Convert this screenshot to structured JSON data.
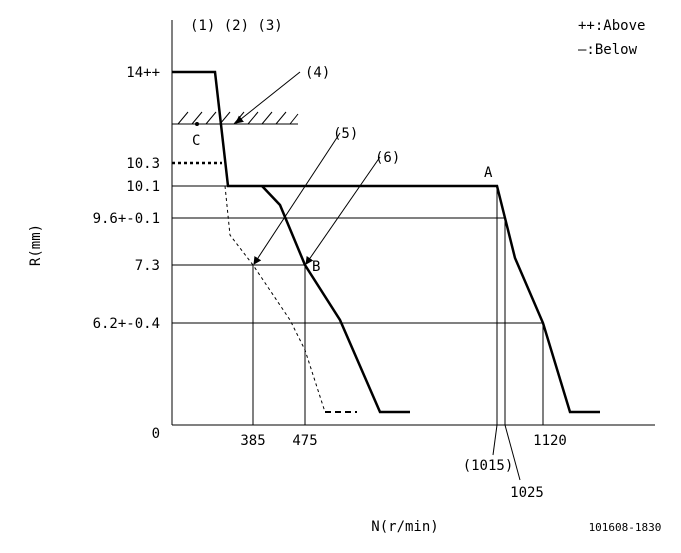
{
  "header": {
    "markers": "(1) (2) (3)",
    "legend_above": "++:Above",
    "legend_below": "—:Below"
  },
  "y_axis": {
    "title": "R(mm)",
    "ticks": [
      "14++",
      "10.3",
      "10.1",
      "9.6+-0.1",
      "7.3",
      "6.2+-0.4",
      "0"
    ]
  },
  "x_axis": {
    "title": "N(r/min)",
    "ticks": [
      "385",
      "475",
      "(1015)",
      "1025",
      "1120"
    ]
  },
  "callouts": [
    "(4)",
    "(5)",
    "(6)"
  ],
  "points": [
    "A",
    "B",
    "C"
  ],
  "code": "101608-1830"
}
